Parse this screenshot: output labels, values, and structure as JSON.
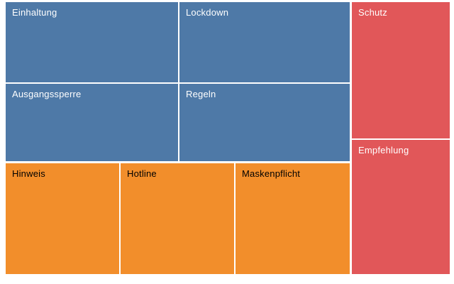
{
  "chart_data": {
    "type": "treemap",
    "background": "#FFFFFF",
    "grid": false,
    "legend": "none",
    "groups": [
      {
        "name": "group-blue",
        "color": "#4E79A7",
        "members": [
          "Einhaltung",
          "Lockdown",
          "Ausgangssperre",
          "Regeln"
        ]
      },
      {
        "name": "group-red",
        "color": "#E15759",
        "members": [
          "Schutz",
          "Empfehlung"
        ]
      },
      {
        "name": "group-orange",
        "color": "#F28E2B",
        "members": [
          "Hinweis",
          "Hotline",
          "Maskenpflicht"
        ]
      }
    ],
    "nodes": [
      {
        "label": "Einhaltung",
        "color": "#4E79A7",
        "text_color": "#FFFFFF",
        "relative_area_pct": 11.7
      },
      {
        "label": "Lockdown",
        "color": "#4E79A7",
        "text_color": "#FFFFFF",
        "relative_area_pct": 11.5
      },
      {
        "label": "Ausgangssperre",
        "color": "#4E79A7",
        "text_color": "#FFFFFF",
        "relative_area_pct": 11.3
      },
      {
        "label": "Regeln",
        "color": "#4E79A7",
        "text_color": "#FFFFFF",
        "relative_area_pct": 11.1
      },
      {
        "label": "Schutz",
        "color": "#E15759",
        "text_color": "#FFFFFF",
        "relative_area_pct": 11.3
      },
      {
        "label": "Empfehlung",
        "color": "#E15759",
        "text_color": "#FFFFFF",
        "relative_area_pct": 11.1
      },
      {
        "label": "Hinweis",
        "color": "#F28E2B",
        "text_color": "#000000",
        "relative_area_pct": 10.6
      },
      {
        "label": "Hotline",
        "color": "#F28E2B",
        "text_color": "#000000",
        "relative_area_pct": 10.6
      },
      {
        "label": "Maskenpflicht",
        "color": "#F28E2B",
        "text_color": "#000000",
        "relative_area_pct": 10.7
      }
    ]
  }
}
